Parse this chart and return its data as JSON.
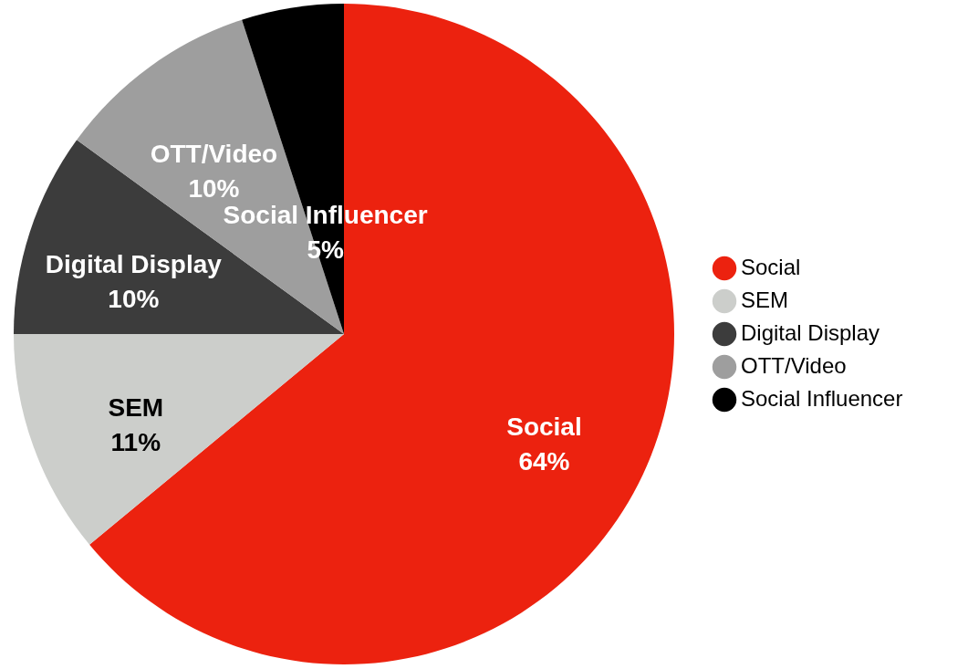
{
  "chart_data": {
    "type": "pie",
    "categories": [
      "Social",
      "SEM",
      "Digital Display",
      "OTT/Video",
      "Social Influencer"
    ],
    "values": [
      64,
      11,
      10,
      10,
      5
    ],
    "value_labels": [
      "64%",
      "11%",
      "10%",
      "10%",
      "5%"
    ],
    "colors": [
      "#ec220f",
      "#cccecb",
      "#3c3c3c",
      "#9e9e9e",
      "#000000"
    ],
    "legend": "right"
  }
}
